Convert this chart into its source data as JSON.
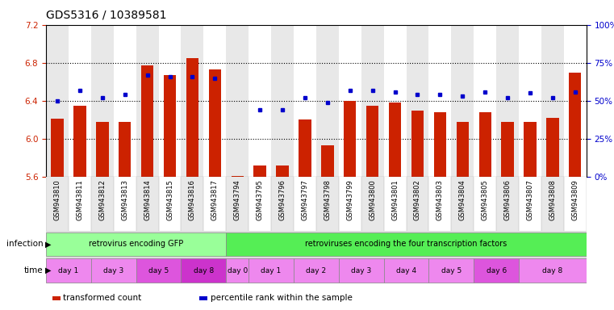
{
  "title": "GDS5316 / 10389581",
  "ylim_left": [
    5.6,
    7.2
  ],
  "ylim_right": [
    0,
    100
  ],
  "yticks_left": [
    5.6,
    6.0,
    6.4,
    6.8,
    7.2
  ],
  "yticks_right": [
    0,
    25,
    50,
    75,
    100
  ],
  "ytick_labels_right": [
    "0%",
    "25%",
    "50%",
    "75%",
    "100%"
  ],
  "samples": [
    "GSM943810",
    "GSM943811",
    "GSM943812",
    "GSM943813",
    "GSM943814",
    "GSM943815",
    "GSM943816",
    "GSM943817",
    "GSM943794",
    "GSM943795",
    "GSM943796",
    "GSM943797",
    "GSM943798",
    "GSM943799",
    "GSM943800",
    "GSM943801",
    "GSM943802",
    "GSM943803",
    "GSM943804",
    "GSM943805",
    "GSM943806",
    "GSM943807",
    "GSM943808",
    "GSM943809"
  ],
  "red_values": [
    6.21,
    6.35,
    6.18,
    6.18,
    6.77,
    6.67,
    6.85,
    6.73,
    5.61,
    5.72,
    5.72,
    6.2,
    5.93,
    6.4,
    6.35,
    6.38,
    6.3,
    6.28,
    6.18,
    6.28,
    6.18,
    6.18,
    6.22,
    6.7
  ],
  "blue_values": [
    50,
    57,
    52,
    54,
    67,
    66,
    66,
    65,
    null,
    44,
    44,
    52,
    49,
    57,
    57,
    56,
    54,
    54,
    53,
    56,
    52,
    55,
    52,
    56
  ],
  "bar_bottom": 5.6,
  "bar_color": "#cc2200",
  "dot_color": "#0000cc",
  "infection_groups": [
    {
      "label": "retrovirus encoding GFP",
      "start": 0,
      "end": 8,
      "color": "#99ff99"
    },
    {
      "label": "retroviruses encoding the four transcription factors",
      "start": 8,
      "end": 24,
      "color": "#55ee55"
    }
  ],
  "time_groups": [
    {
      "label": "day 1",
      "start": 0,
      "end": 2,
      "color": "#ee88ee"
    },
    {
      "label": "day 3",
      "start": 2,
      "end": 4,
      "color": "#ee88ee"
    },
    {
      "label": "day 5",
      "start": 4,
      "end": 6,
      "color": "#dd55dd"
    },
    {
      "label": "day 8",
      "start": 6,
      "end": 8,
      "color": "#cc33cc"
    },
    {
      "label": "day 0",
      "start": 8,
      "end": 9,
      "color": "#ee88ee"
    },
    {
      "label": "day 1",
      "start": 9,
      "end": 11,
      "color": "#ee88ee"
    },
    {
      "label": "day 2",
      "start": 11,
      "end": 13,
      "color": "#ee88ee"
    },
    {
      "label": "day 3",
      "start": 13,
      "end": 15,
      "color": "#ee88ee"
    },
    {
      "label": "day 4",
      "start": 15,
      "end": 17,
      "color": "#ee88ee"
    },
    {
      "label": "day 5",
      "start": 17,
      "end": 19,
      "color": "#ee88ee"
    },
    {
      "label": "day 6",
      "start": 19,
      "end": 21,
      "color": "#dd55dd"
    },
    {
      "label": "day 8",
      "start": 21,
      "end": 24,
      "color": "#ee88ee"
    }
  ],
  "legend_items": [
    {
      "color": "#cc2200",
      "label": "transformed count"
    },
    {
      "color": "#0000cc",
      "label": "percentile rank within the sample"
    }
  ],
  "bg_color": "#ffffff",
  "tick_color_left": "#cc2200",
  "tick_color_right": "#0000cc",
  "title_fontsize": 10,
  "tick_fontsize": 7.5,
  "sample_fontsize": 6,
  "col_colors_even": "#e8e8e8",
  "col_colors_odd": "#ffffff"
}
